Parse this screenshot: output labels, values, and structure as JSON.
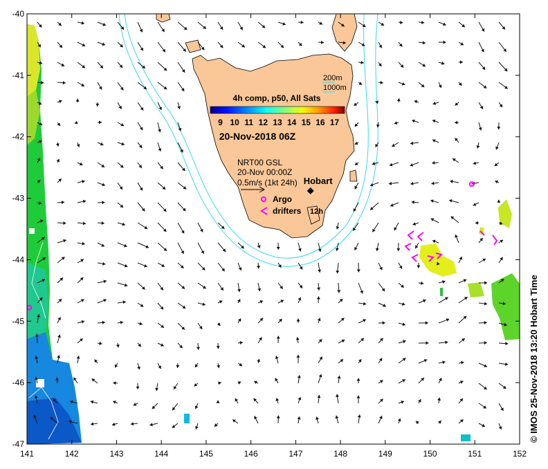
{
  "map": {
    "lon_range": [
      141,
      152
    ],
    "lat_range": [
      -47,
      -40
    ],
    "x_ticks": [
      "141",
      "142",
      "143",
      "144",
      "145",
      "146",
      "147",
      "148",
      "149",
      "150",
      "151",
      "152"
    ],
    "y_ticks": [
      "-40",
      "-41",
      "-42",
      "-43",
      "-44",
      "-45",
      "-46",
      "-47"
    ],
    "credit": "© IMOS 25-Nov-2018 13:20 Hobart Time",
    "colors": {
      "land": "#f9c798",
      "contour": "#38d9e8",
      "arrow": "#111111",
      "drifter": "#ff00ff"
    }
  },
  "legend": {
    "contours": [
      "200m",
      "1000m"
    ],
    "colorbar_title": "4h comp, p50, All Sats",
    "colorbar_labels": [
      "9",
      "10",
      "11",
      "12",
      "13",
      "14",
      "15",
      "16",
      "17"
    ],
    "colorbar_range": [
      8.3,
      17.7
    ],
    "date": "20-Nov-2018 06Z",
    "current_source": "NRT00 GSL",
    "current_time": "20-Nov 00:00Z",
    "current_scale": "0.5m/s (1kt 24h)",
    "argo_label": "Argo",
    "drifters_label": "drifters",
    "drifters_interval": "12h"
  },
  "places": [
    {
      "name": "Hobart",
      "lon": 147.33,
      "lat": -42.88
    }
  ],
  "argo_floats": [
    {
      "lon": 150.93,
      "lat": -42.77
    },
    {
      "lon": 141.05,
      "lat": -44.78
    }
  ]
}
